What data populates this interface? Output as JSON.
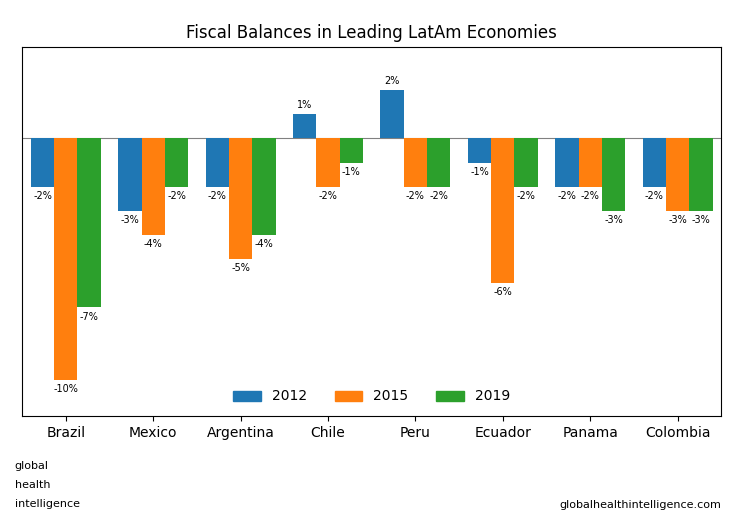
{
  "chart_data": {
    "type": "bar",
    "title": "Fiscal Balances in Leading LatAm Economies",
    "categories": [
      "Brazil",
      "Mexico",
      "Argentina",
      "Chile",
      "Peru",
      "Ecuador",
      "Panama",
      "Colombia"
    ],
    "series": [
      {
        "name": "2012",
        "values": [
          -2,
          -3,
          -2,
          1,
          2,
          -1,
          -2,
          -2
        ],
        "value_labels": [
          "-2%",
          "-3%",
          "-2%",
          "1%",
          "2%",
          "-1%",
          "-2%",
          "-2%"
        ]
      },
      {
        "name": "2015",
        "values": [
          -10,
          -4,
          -5,
          -2,
          -2,
          -6,
          -2,
          -3
        ],
        "value_labels": [
          "-10%",
          "-4%",
          "-5%",
          "-2%",
          "-2%",
          "-6%",
          "-2%",
          "-3%"
        ]
      },
      {
        "name": "2019",
        "values": [
          -7,
          -2,
          -4,
          -1,
          -2,
          -2,
          -3,
          -3
        ],
        "value_labels": [
          "-7%",
          "-2%",
          "-4%",
          "-1%",
          "-2%",
          "-2%",
          "-3%",
          "-3%"
        ]
      }
    ],
    "ylim": [
      -11.5,
      3.8
    ],
    "tick_labels": "x",
    "data_labels": true,
    "legend": "lower center",
    "annotations": [
      "globalhealthintelligence.com",
      "global",
      "health",
      "intelligence"
    ]
  }
}
